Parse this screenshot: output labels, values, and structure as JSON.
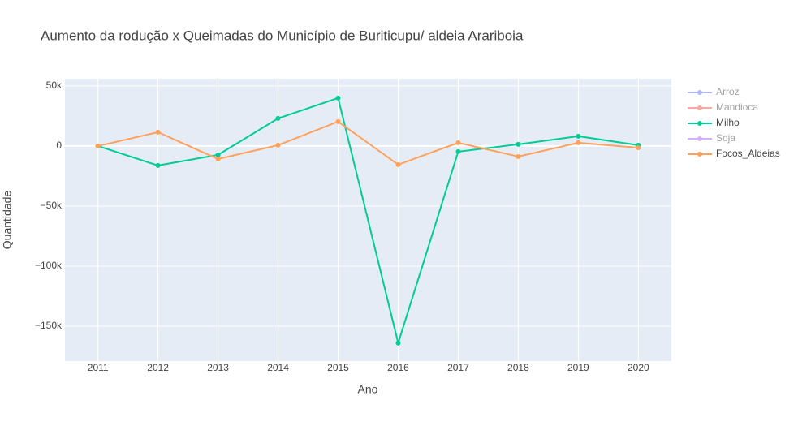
{
  "chart_data": {
    "type": "line",
    "title": "Aumento da rodução x Queimadas do Município de Buriticupu/ aldeia Arariboia",
    "x_label": "Ano",
    "y_label": "Quantidade",
    "x": [
      2011,
      2012,
      2013,
      2014,
      2015,
      2016,
      2017,
      2018,
      2019,
      2020
    ],
    "xlim": [
      2010.45,
      2020.55
    ],
    "xticks": [
      2011,
      2012,
      2013,
      2014,
      2015,
      2016,
      2017,
      2018,
      2019,
      2020
    ],
    "ylim": [
      -179000,
      56000
    ],
    "yticks": [
      {
        "value": 50000,
        "label": "50k"
      },
      0,
      {
        "value": -50000,
        "label": "−50k"
      },
      {
        "value": -100000,
        "label": "−100k"
      },
      {
        "value": -150000,
        "label": "−150k"
      }
    ],
    "grid": true,
    "legend": "right",
    "series": [
      {
        "name": "Arroz",
        "color": "#636efa",
        "visible": "legendonly",
        "values": [
          null,
          null,
          null,
          null,
          null,
          null,
          null,
          null,
          null,
          null
        ]
      },
      {
        "name": "Mandioca",
        "color": "#EF553B",
        "visible": "legendonly",
        "values": [
          null,
          null,
          null,
          null,
          null,
          null,
          null,
          null,
          null,
          null
        ]
      },
      {
        "name": "Milho",
        "color": "#00cc96",
        "visible": true,
        "values": [
          0,
          -16200,
          -7400,
          23000,
          39900,
          -164000,
          -4700,
          1400,
          8100,
          700
        ]
      },
      {
        "name": "Soja",
        "color": "#ab63fa",
        "visible": "legendonly",
        "values": [
          null,
          null,
          null,
          null,
          null,
          null,
          null,
          null,
          null,
          null
        ]
      },
      {
        "name": "Focos_Aldeias",
        "color": "#FFA15A",
        "visible": true,
        "values": [
          0,
          11500,
          -10800,
          700,
          20300,
          -15500,
          2700,
          -8800,
          2700,
          -1400
        ]
      }
    ]
  }
}
